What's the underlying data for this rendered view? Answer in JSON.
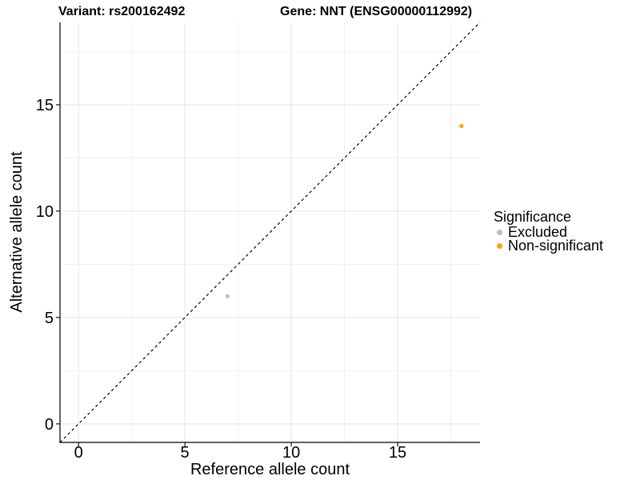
{
  "chart_data": {
    "type": "scatter",
    "title_variant": "Variant: rs200162492",
    "title_gene": "Gene: NNT (ENSG00000112992)",
    "xlabel": "Reference allele count",
    "ylabel": "Alternative allele count",
    "xlim": [
      -0.87,
      18.87
    ],
    "ylim": [
      -0.87,
      18.87
    ],
    "xticks": [
      0,
      5,
      10,
      15
    ],
    "yticks": [
      0,
      5,
      10,
      15
    ],
    "xticks_minor": [
      2.5,
      7.5,
      12.5,
      17.5
    ],
    "yticks_minor": [
      2.5,
      7.5,
      12.5,
      17.5
    ],
    "grid": "major+minor",
    "identity_line": {
      "equation": "y = x",
      "style": "dashed",
      "color": "#000000"
    },
    "series": [
      {
        "name": "Excluded",
        "color": "#BEBEBE",
        "points": [
          [
            7,
            6
          ]
        ]
      },
      {
        "name": "Non-significant",
        "color": "#FFA500",
        "points": [
          [
            18,
            14
          ]
        ]
      }
    ],
    "legend": {
      "title": "Significance",
      "position": "right"
    }
  },
  "colors": {
    "background": "#FFFFFF",
    "grid_major": "#E9E9E9",
    "grid_minor": "#F2F2F2",
    "axis_line": "#000000",
    "tick_text": "#000000"
  }
}
